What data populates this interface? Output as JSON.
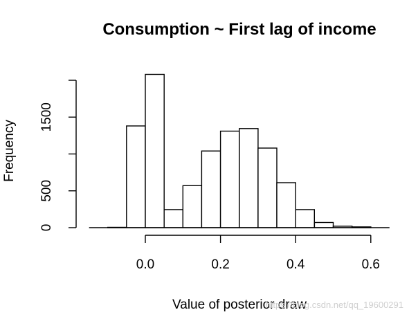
{
  "chart_data": {
    "type": "bar",
    "title": "Consumption ~ First lag of income",
    "xlabel": "Value of posterior draw",
    "ylabel": "Frequency",
    "bin_width": 0.05,
    "bin_starts": [
      -0.1,
      -0.05,
      0.0,
      0.05,
      0.1,
      0.15,
      0.2,
      0.25,
      0.3,
      0.35,
      0.4,
      0.45,
      0.5,
      0.55
    ],
    "values": [
      5,
      1380,
      2080,
      245,
      570,
      1040,
      1310,
      1345,
      1080,
      610,
      245,
      70,
      20,
      10
    ],
    "xlim": [
      -0.15,
      0.65
    ],
    "ylim": [
      0,
      2000
    ],
    "x_ticks": [
      0.0,
      0.2,
      0.4,
      0.6
    ],
    "x_tick_labels": [
      "0.0",
      "0.2",
      "0.4",
      "0.6"
    ],
    "y_ticks": [
      0,
      500,
      1000,
      1500,
      2000
    ],
    "y_tick_labels": [
      "0",
      "500",
      "",
      "1500",
      ""
    ],
    "grid": false
  },
  "watermark": "https://blog.csdn.net/qq_19600291"
}
